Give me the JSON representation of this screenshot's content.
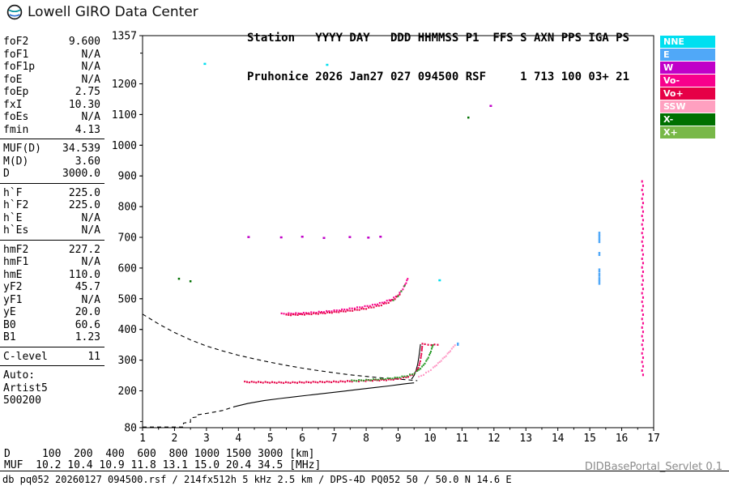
{
  "branding": {
    "logo_text": "Lowell GIRO Data Center"
  },
  "header": {
    "line1": "Station   YYYY DAY   DDD HHMMSS P1  FFS S AXN PPS IGA PS",
    "line2": "Pruhonice 2026 Jan27 027 094500 RSF     1 713 100 03+ 21"
  },
  "parameters": {
    "groups": [
      {
        "rows": [
          [
            "foF2",
            "9.600"
          ],
          [
            "foF1",
            "N/A"
          ],
          [
            "foF1p",
            "N/A"
          ],
          [
            "foE",
            "N/A"
          ],
          [
            "foEp",
            "2.75"
          ],
          [
            "fxI",
            "10.30"
          ],
          [
            "foEs",
            "N/A"
          ],
          [
            "fmin",
            "4.13"
          ]
        ]
      },
      {
        "rows": [
          [
            "MUF(D)",
            "34.539"
          ],
          [
            "M(D)",
            "3.60"
          ],
          [
            "D",
            "3000.0"
          ]
        ]
      },
      {
        "rows": [
          [
            "h`F",
            "225.0"
          ],
          [
            "h`F2",
            "225.0"
          ],
          [
            "h`E",
            "N/A"
          ],
          [
            "h`Es",
            "N/A"
          ]
        ]
      },
      {
        "rows": [
          [
            "hmF2",
            "227.2"
          ],
          [
            "hmF1",
            "N/A"
          ],
          [
            "hmE",
            "110.0"
          ],
          [
            "yF2",
            "45.7"
          ],
          [
            "yF1",
            "N/A"
          ],
          [
            "yE",
            "20.0"
          ],
          [
            "B0",
            "60.6"
          ],
          [
            "B1",
            "1.23"
          ]
        ]
      },
      {
        "rows": [
          [
            "C-level",
            "11"
          ]
        ]
      }
    ],
    "auto_label": "Auto:",
    "auto_lines": [
      "Artist5",
      "500200"
    ]
  },
  "legend": [
    {
      "label": "NNE",
      "color": "#00dff0"
    },
    {
      "label": "E",
      "color": "#50a8f8"
    },
    {
      "label": "W",
      "color": "#c000c8"
    },
    {
      "label": "Vo-",
      "color": "#f8008c"
    },
    {
      "label": "Vo+",
      "color": "#e60046"
    },
    {
      "label": "SSW",
      "color": "#ffa0c0"
    },
    {
      "label": "X-",
      "color": "#007000"
    },
    {
      "label": "X+",
      "color": "#78b848"
    }
  ],
  "footer": {
    "d_line": "D     100  200  400  600  800 1000 1500 3000 [km]",
    "muf_line": "MUF  10.2 10.4 10.9 11.8 13.1 15.0 20.4 34.5 [MHz]",
    "db_line": "db pq052 20260127 094500.rsf / 214fx512h 5 kHz 2.5 km / DPS-4D PQ052 50 / 50.0 N 14.6 E",
    "servlet": "DIDBasePortal_Servlet 0.1"
  },
  "chart_data": {
    "type": "scatter",
    "title": "Pruhonice ionogram 2026 Jan27 094500",
    "x_axis": {
      "min": 1,
      "max": 17,
      "unit": "MHz",
      "ticks": [
        1,
        2,
        3,
        4,
        5,
        6,
        7,
        8,
        9,
        10,
        11,
        12,
        13,
        14,
        15,
        16,
        17
      ]
    },
    "y_axis": {
      "min": 80,
      "max": 1357,
      "unit": "km",
      "tick_labels": [
        1357,
        1200,
        1100,
        1000,
        900,
        800,
        700,
        600,
        500,
        400,
        300,
        200,
        80
      ]
    },
    "grid": false,
    "legend_position": "right-outside",
    "series": [
      {
        "name": "muf-transmission-curve",
        "style": "dashed",
        "color": "#000000",
        "points": [
          [
            1,
            450
          ],
          [
            1.5,
            418
          ],
          [
            2,
            390
          ],
          [
            2.5,
            366
          ],
          [
            3,
            346
          ],
          [
            3.5,
            330
          ],
          [
            4,
            316
          ],
          [
            4.5,
            304
          ],
          [
            5,
            293
          ],
          [
            5.5,
            283
          ],
          [
            6,
            274
          ],
          [
            6.5,
            266
          ],
          [
            7,
            259
          ],
          [
            7.5,
            252
          ],
          [
            8,
            247
          ],
          [
            8.5,
            242
          ],
          [
            9,
            238
          ],
          [
            9.3,
            236
          ],
          [
            9.6,
            233
          ]
        ]
      },
      {
        "name": "e-valley-dashed",
        "style": "dashed",
        "color": "#000000",
        "points": [
          [
            1,
            82
          ],
          [
            2.28,
            82
          ],
          [
            2.28,
            95
          ],
          [
            2.5,
            98
          ],
          [
            2.5,
            112
          ],
          [
            2.72,
            115
          ],
          [
            2.72,
            122
          ],
          [
            3.1,
            128
          ],
          [
            3.5,
            136
          ],
          [
            3.9,
            149
          ]
        ]
      },
      {
        "name": "true-height-profile",
        "style": "line",
        "color": "#000000",
        "points": [
          [
            3.9,
            149
          ],
          [
            4.3,
            159
          ],
          [
            4.8,
            168
          ],
          [
            5.3,
            175
          ],
          [
            5.8,
            181
          ],
          [
            6.3,
            187
          ],
          [
            6.8,
            193
          ],
          [
            7.3,
            199
          ],
          [
            7.8,
            205
          ],
          [
            8.3,
            211
          ],
          [
            8.7,
            216
          ],
          [
            9,
            220
          ],
          [
            9.3,
            224
          ],
          [
            9.5,
            226
          ]
        ]
      },
      {
        "name": "fitted-trace-cusp",
        "style": "line",
        "color": "#000000",
        "points": [
          [
            9.42,
            238
          ],
          [
            9.5,
            250
          ],
          [
            9.56,
            266
          ],
          [
            9.61,
            286
          ],
          [
            9.65,
            310
          ],
          [
            9.68,
            334
          ],
          [
            9.7,
            352
          ]
        ]
      },
      {
        "name": "f-trace-o",
        "style": "dots",
        "color": "#e60046",
        "interpolate": true,
        "points": [
          [
            4.2,
            229
          ],
          [
            4.7,
            228
          ],
          [
            5.2,
            227
          ],
          [
            5.7,
            227
          ],
          [
            6.2,
            228
          ],
          [
            6.7,
            229
          ],
          [
            7.2,
            230
          ],
          [
            7.7,
            232
          ],
          [
            8.2,
            234
          ],
          [
            8.7,
            236
          ],
          [
            9,
            239
          ],
          [
            9.25,
            244
          ],
          [
            9.45,
            252
          ],
          [
            9.58,
            264
          ],
          [
            9.66,
            282
          ],
          [
            9.71,
            306
          ],
          [
            9.74,
            330
          ],
          [
            9.76,
            352
          ]
        ]
      },
      {
        "name": "f-trace-o-tip",
        "style": "dots",
        "color": "#e60046",
        "points": [
          [
            9.84,
            352
          ],
          [
            9.94,
            350
          ],
          [
            10.04,
            349
          ],
          [
            10.14,
            351
          ],
          [
            10.24,
            350
          ]
        ]
      },
      {
        "name": "f-trace-x",
        "style": "dots",
        "color": "#2e9e2e",
        "interpolate": true,
        "points": [
          [
            7.55,
            233
          ],
          [
            8,
            235
          ],
          [
            8.45,
            238
          ],
          [
            8.9,
            242
          ],
          [
            9.2,
            247
          ],
          [
            9.45,
            254
          ],
          [
            9.6,
            264
          ],
          [
            9.75,
            278
          ],
          [
            9.88,
            296
          ],
          [
            9.98,
            316
          ],
          [
            10.05,
            336
          ],
          [
            10.09,
            350
          ]
        ]
      },
      {
        "name": "f-trace-x-outer",
        "style": "dots",
        "color": "#ff9ec8",
        "interpolate": true,
        "points": [
          [
            9.65,
            245
          ],
          [
            9.8,
            253
          ],
          [
            9.95,
            263
          ],
          [
            10.1,
            275
          ],
          [
            10.25,
            289
          ],
          [
            10.4,
            304
          ],
          [
            10.55,
            320
          ],
          [
            10.68,
            336
          ],
          [
            10.78,
            350
          ]
        ]
      },
      {
        "name": "multiple-trace-vo-minus",
        "style": "dots",
        "color": "#f8008c",
        "interpolate": true,
        "points": [
          [
            5.35,
            451
          ],
          [
            5.8,
            452
          ],
          [
            6.2,
            454
          ],
          [
            6.6,
            457
          ],
          [
            7,
            461
          ],
          [
            7.4,
            466
          ],
          [
            7.8,
            472
          ],
          [
            8.2,
            479
          ],
          [
            8.5,
            487
          ],
          [
            8.8,
            498
          ],
          [
            9,
            512
          ],
          [
            9.15,
            532
          ],
          [
            9.25,
            552
          ],
          [
            9.3,
            565
          ]
        ]
      },
      {
        "name": "multiple-trace-vo-plus",
        "style": "dots",
        "color": "#e60046",
        "interpolate": true,
        "points": [
          [
            5.5,
            447
          ],
          [
            6,
            449
          ],
          [
            6.5,
            452
          ],
          [
            7,
            456
          ],
          [
            7.5,
            461
          ],
          [
            8,
            468
          ],
          [
            8.4,
            477
          ],
          [
            8.7,
            488
          ],
          [
            8.9,
            500
          ],
          [
            9.05,
            515
          ]
        ]
      },
      {
        "name": "multiple-trace-x",
        "style": "dots",
        "color": "#2e9e2e",
        "points": [
          [
            8.85,
            495
          ],
          [
            9,
            508
          ],
          [
            9.1,
            524
          ],
          [
            9.2,
            542
          ]
        ]
      },
      {
        "name": "rfi-column",
        "style": "dots",
        "color": "#f8008c",
        "dot": [
          2,
          3
        ],
        "column": {
          "x": 16.65,
          "h_from": 252,
          "h_to": 882,
          "step": 14
        }
      },
      {
        "name": "rfi-blue",
        "style": "dots",
        "color": "#50a8f8",
        "dot": [
          2.5,
          5
        ],
        "points": [
          [
            15.3,
            712
          ],
          [
            15.3,
            700
          ],
          [
            15.3,
            688
          ],
          [
            15.3,
            646
          ],
          [
            15.3,
            592
          ],
          [
            15.3,
            578
          ],
          [
            15.3,
            564
          ],
          [
            15.3,
            552
          ]
        ]
      },
      {
        "name": "sporadic-cyan",
        "style": "dots",
        "color": "#00dff0",
        "dot": [
          3,
          2.5
        ],
        "points": [
          [
            2.95,
            1265
          ],
          [
            6.78,
            1262
          ],
          [
            10.3,
            560
          ]
        ]
      },
      {
        "name": "sporadic-magenta",
        "style": "dots",
        "color": "#c000c8",
        "dot": [
          3,
          2.5
        ],
        "points": [
          [
            4.32,
            701
          ],
          [
            5.34,
            700
          ],
          [
            6,
            702
          ],
          [
            6.68,
            698
          ],
          [
            7.49,
            701
          ],
          [
            8.07,
            699
          ],
          [
            8.45,
            702
          ],
          [
            11.9,
            1128
          ]
        ]
      },
      {
        "name": "sporadic-darkgreen",
        "style": "dots",
        "color": "#007000",
        "dot": [
          2.5,
          2.5
        ],
        "points": [
          [
            2.14,
            565
          ],
          [
            2.5,
            557
          ],
          [
            11.2,
            1090
          ]
        ]
      },
      {
        "name": "sporadic-blue",
        "style": "dots",
        "color": "#50a8f8",
        "dot": [
          2.5,
          4
        ],
        "points": [
          [
            10.87,
            352
          ]
        ]
      }
    ]
  }
}
